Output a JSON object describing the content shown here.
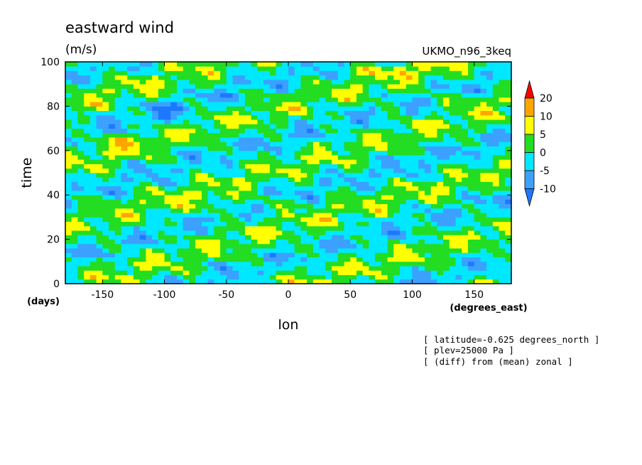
{
  "chart_data": {
    "type": "heatmap",
    "title": "eastward wind",
    "units": "(m/s)",
    "model": "UKMO_n96_3keq",
    "xlabel": "lon",
    "xunit": "(degrees_east)",
    "ylabel": "time",
    "yunit": "(days)",
    "xlim": [
      -180,
      180
    ],
    "ylim": [
      0,
      100
    ],
    "xticks": [
      -150,
      -100,
      -50,
      0,
      50,
      100,
      150
    ],
    "yticks": [
      0,
      20,
      40,
      60,
      80,
      100
    ],
    "colorbar": {
      "levels": [
        -10,
        -5,
        0,
        5,
        10,
        20
      ],
      "colors": [
        "#1e78ff",
        "#3ca0ff",
        "#00e8ff",
        "#22dd22",
        "#ffff00",
        "#ffa500",
        "#ff0000"
      ]
    },
    "annotations": [
      "[ latitude=-0.625 degrees_north ]",
      "[ plev=25000 Pa ]",
      "[ (diff) from (mean) zonal ]"
    ]
  }
}
